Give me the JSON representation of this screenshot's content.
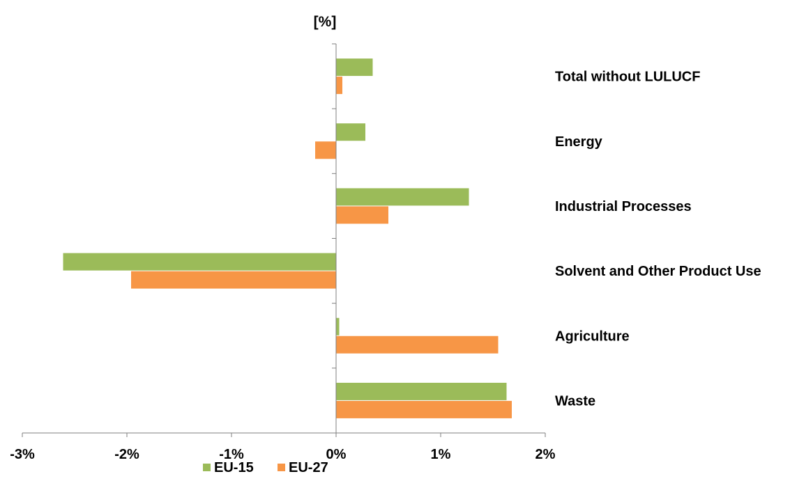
{
  "chart_data": {
    "type": "bar",
    "orientation": "horizontal",
    "ylabel": "[%]",
    "categories": [
      "Total without LULUCF",
      "Energy",
      "Industrial Processes",
      "Solvent and Other Product Use",
      "Agriculture",
      "Waste"
    ],
    "series": [
      {
        "name": "EU-15",
        "color": "#9bbb59",
        "values": [
          0.35,
          0.28,
          1.27,
          -2.61,
          0.03,
          1.63
        ]
      },
      {
        "name": "EU-27",
        "color": "#f79646",
        "values": [
          0.06,
          -0.2,
          0.5,
          -1.96,
          1.55,
          1.68
        ]
      }
    ],
    "xlim": [
      -3,
      2
    ],
    "xticks": [
      -3,
      -2,
      -1,
      0,
      1,
      2
    ],
    "xtick_labels": [
      "-3%",
      "-2%",
      "-1%",
      "0%",
      "1%",
      "2%"
    ],
    "grid": false,
    "legend_position": "bottom"
  }
}
